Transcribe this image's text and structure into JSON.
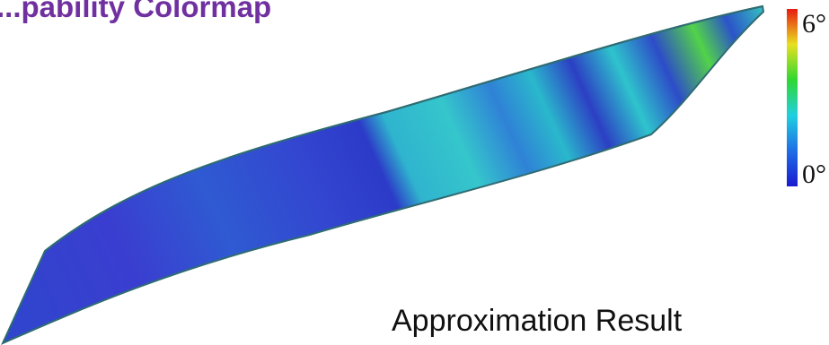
{
  "title": "...pability Colormap",
  "caption": "Approximation Result",
  "legend": {
    "max_label": "6°",
    "min_label": "0°"
  },
  "colors": {
    "title": "#7030a0",
    "low": "#2323c8",
    "mid_low": "#2f7fd6",
    "mid": "#2fc6c8",
    "mid_high": "#38d838",
    "high": "#f0e020",
    "max": "#e82010",
    "surface_outline": "#2f6c73"
  }
}
